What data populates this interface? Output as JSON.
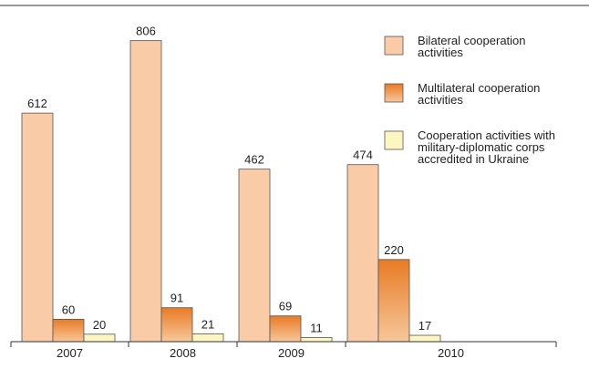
{
  "chart_data": {
    "type": "bar",
    "categories": [
      "2007",
      "2008",
      "2009",
      "2010"
    ],
    "series": [
      {
        "name": "Bilateral cooperation activities",
        "values": [
          612,
          806,
          462,
          474
        ],
        "color": "#f9cba7"
      },
      {
        "name": "Multilateral cooperation activities",
        "values": [
          60,
          91,
          69,
          220
        ],
        "color": "#ef8c3a"
      },
      {
        "name": "Cooperation activities with military-diplomatic corps accredited in Ukraine",
        "values": [
          20,
          21,
          11,
          17
        ],
        "color": "#fdf6c0"
      }
    ],
    "legend_lines": [
      [
        "Bilateral cooperation",
        "activities"
      ],
      [
        "Multilateral cooperation",
        "activities"
      ],
      [
        "Cooperation activities with",
        "military-diplomatic corps",
        "accredited in Ukraine"
      ]
    ],
    "ylim": [
      0,
      806
    ],
    "grid": false,
    "legend_position": "top-right",
    "title": "",
    "xlabel": "",
    "ylabel": ""
  }
}
